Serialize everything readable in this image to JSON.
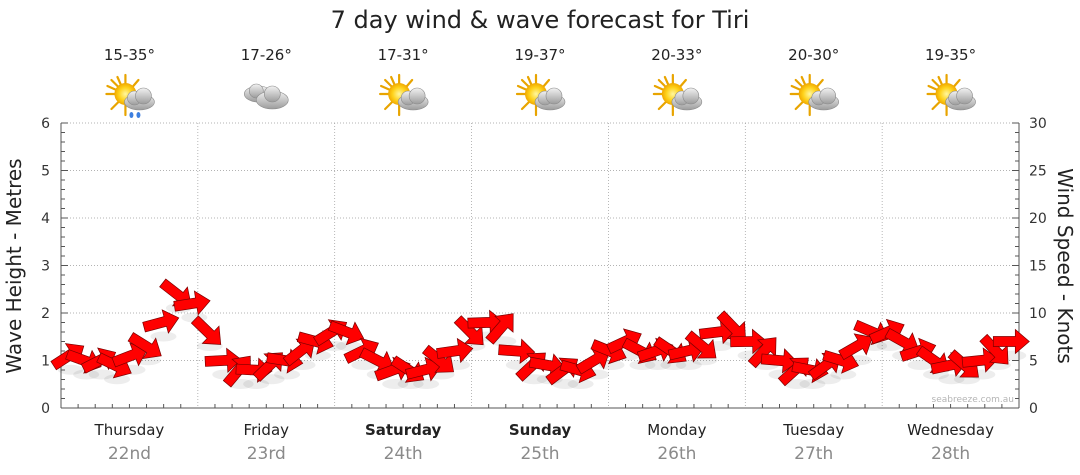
{
  "chart_data": {
    "type": "line",
    "title": "7 day wind & wave forecast for Tiri",
    "y_left": {
      "label": "Wave Height - Metres",
      "range": [
        0,
        6
      ],
      "ticks": [
        "0",
        "1",
        "2",
        "3",
        "4",
        "5",
        "6"
      ]
    },
    "y_right": {
      "label": "Wind Speed - Knots",
      "range": [
        0,
        30
      ],
      "ticks": [
        "0",
        "5",
        "10",
        "15",
        "20",
        "25",
        "30"
      ]
    },
    "grid": true,
    "days": [
      {
        "name": "Thursday",
        "date": "22nd",
        "temp": "15-35°",
        "weather_icon": "sun-cloud-rain-icon",
        "bold": false
      },
      {
        "name": "Friday",
        "date": "23rd",
        "temp": "17-26°",
        "weather_icon": "cloud-icon",
        "bold": false
      },
      {
        "name": "Saturday",
        "date": "24th",
        "temp": "17-31°",
        "weather_icon": "sun-cloud-icon",
        "bold": true
      },
      {
        "name": "Sunday",
        "date": "25th",
        "temp": "19-37°",
        "weather_icon": "sun-cloud-icon",
        "bold": true
      },
      {
        "name": "Monday",
        "date": "26th",
        "temp": "20-33°",
        "weather_icon": "sun-cloud-icon",
        "bold": false
      },
      {
        "name": "Tuesday",
        "date": "27th",
        "temp": "20-30°",
        "weather_icon": "sun-cloud-icon",
        "bold": false
      },
      {
        "name": "Wednesday",
        "date": "28th",
        "temp": "19-35°",
        "weather_icon": "sun-cloud-icon",
        "bold": false
      }
    ],
    "series": [
      {
        "name": "Wind Speed",
        "unit": "knots",
        "values": [
          5.5,
          5,
          5,
          4.5,
          5.5,
          6.5,
          9,
          12,
          11,
          8,
          5,
          4,
          4,
          4.5,
          5,
          6,
          7,
          8,
          8,
          6,
          5,
          4,
          4,
          4,
          5,
          6,
          8,
          9,
          8.5,
          6,
          4.5,
          4.5,
          4,
          4,
          5,
          6,
          7,
          6,
          6,
          6,
          6,
          6.5,
          8,
          8.5,
          7,
          6,
          5,
          4,
          4,
          4.5,
          5,
          6.5,
          8,
          8,
          7,
          6,
          5,
          4.5,
          4.5,
          5,
          6,
          7
        ]
      }
    ],
    "arrow_color": "#ff0000",
    "watermark": "seabreeze.com.au"
  }
}
